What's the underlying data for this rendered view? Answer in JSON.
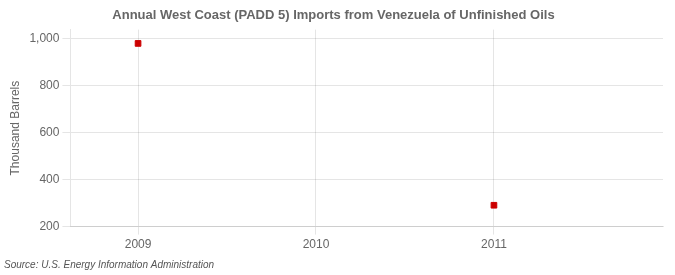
{
  "chart_data": {
    "type": "scatter",
    "title": "Annual West Coast (PADD 5) Imports from Venezuela of Unfinished Oils",
    "ylabel": "Thousand Barrels",
    "source": "Source: U.S. Energy Information Administration",
    "x": [
      2009,
      2011
    ],
    "values": [
      981,
      291
    ],
    "color": "#cc0000",
    "marker": "square",
    "xlim": [
      2008.62,
      2011.95
    ],
    "xticks": [
      2009,
      2010,
      2011
    ],
    "ylim": [
      200,
      1040
    ],
    "yticks": [
      200,
      400,
      600,
      800,
      {
        "value": 1000,
        "label": "1,000"
      }
    ],
    "grid": true
  }
}
